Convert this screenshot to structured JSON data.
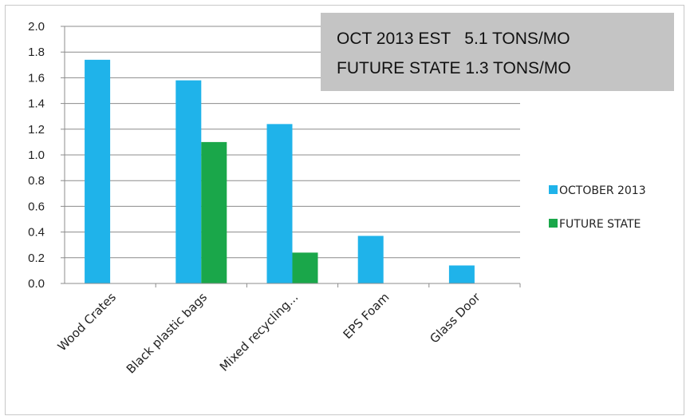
{
  "chart_data": {
    "type": "bar",
    "categories": [
      "Wood Crates",
      "Black plastic bags",
      "Mixed recycling...",
      "EPS Foam",
      "Glass Door"
    ],
    "series": [
      {
        "name": "OCTOBER 2013",
        "color": "#1fb3ea",
        "values": [
          1.74,
          1.58,
          1.24,
          0.37,
          0.14
        ]
      },
      {
        "name": "FUTURE STATE",
        "color": "#1aa74a",
        "values": [
          null,
          1.1,
          0.24,
          null,
          null
        ]
      }
    ],
    "ylim": [
      0,
      2.0
    ],
    "yticks": [
      "0.0",
      "0.2",
      "0.4",
      "0.6",
      "0.8",
      "1.0",
      "1.2",
      "1.4",
      "1.6",
      "1.8",
      "2.0"
    ],
    "grid": true,
    "legend_position": "right",
    "annotation": [
      "OCT 2013 EST   5.1 TONS/MO",
      "FUTURE STATE 1.3 TONS/MO"
    ],
    "annotation_bg": "#c4c4c4",
    "title": "",
    "xlabel": "",
    "ylabel": ""
  }
}
